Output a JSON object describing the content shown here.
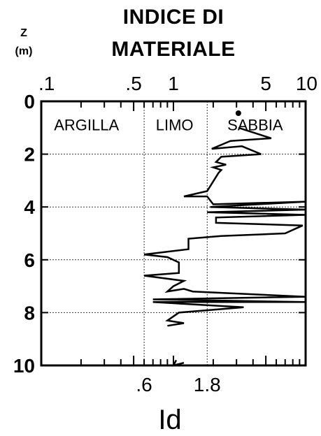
{
  "chart_data": {
    "type": "line",
    "title": [
      "INDICE DI",
      "MATERIALE"
    ],
    "ylabel_lines": [
      "Z",
      "(m)"
    ],
    "xlabel": "Id",
    "x_scale": "log",
    "xlim": [
      0.1,
      10
    ],
    "ylim": [
      0,
      10
    ],
    "y_inverted": true,
    "x_top_ticks": [
      {
        "value": 0.1,
        "label": ".1"
      },
      {
        "value": 0.5,
        "label": ".5"
      },
      {
        "value": 1,
        "label": "1"
      },
      {
        "value": 5,
        "label": "5"
      },
      {
        "value": 10,
        "label": "10"
      }
    ],
    "x_minor_ticks": [
      0.2,
      0.3,
      0.4,
      0.6,
      0.7,
      0.8,
      0.9,
      2,
      3,
      4,
      6,
      7,
      8,
      9
    ],
    "y_ticks": [
      {
        "value": 0,
        "label": "0"
      },
      {
        "value": 2,
        "label": "2"
      },
      {
        "value": 4,
        "label": "4"
      },
      {
        "value": 6,
        "label": "6"
      },
      {
        "value": 8,
        "label": "8"
      },
      {
        "value": 10,
        "label": "10"
      }
    ],
    "zone_boundaries": [
      {
        "value": 0.6,
        "label": ".6"
      },
      {
        "value": 1.8,
        "label": "1.8"
      }
    ],
    "zones": [
      {
        "label": "ARGILLA",
        "x": 0.22
      },
      {
        "label": "LIMO",
        "x": 1.02
      },
      {
        "label": "SABBIA",
        "x": 4.15
      }
    ],
    "series": [
      {
        "x": [
          3.1,
          5.5,
          2.7,
          1.95,
          3.3,
          4.6,
          2.3,
          2.1,
          2.5,
          2.0,
          2.3,
          2.2,
          1.8,
          1.2,
          1.8,
          2.0,
          10,
          1.9,
          10,
          1.8,
          10,
          2.1,
          2.1,
          9.5,
          7.0,
          2.3,
          1.3,
          1.3,
          0.6,
          0.9,
          1.1,
          1.1,
          0.6,
          1.2,
          1.0,
          0.9,
          1.2,
          1.4,
          10,
          0.7,
          10,
          0.7,
          3.4,
          1.1,
          0.9,
          1.2,
          0.9
        ],
        "y": [
          1.0,
          1.4,
          1.5,
          1.8,
          1.7,
          2.0,
          2.1,
          2.3,
          2.4,
          2.5,
          2.6,
          2.7,
          3.4,
          3.6,
          3.6,
          3.9,
          3.8,
          4.0,
          4.1,
          4.2,
          4.3,
          4.4,
          4.6,
          4.7,
          5.0,
          5.1,
          5.2,
          5.6,
          5.8,
          5.9,
          6.1,
          6.5,
          6.6,
          6.8,
          7.0,
          7.2,
          7.1,
          7.2,
          7.4,
          7.5,
          7.6,
          7.6,
          7.8,
          8.0,
          8.3,
          8.4,
          8.5
        ]
      },
      {
        "x": [
          1.05,
          1.0,
          1.2
        ],
        "y": [
          9.8,
          10.0,
          9.9
        ]
      }
    ],
    "marker": {
      "x": 3.1,
      "y": 0.45
    },
    "grid": "dotted at y = 2, 4, 6, 8 and x = 0.6, 1.8"
  }
}
